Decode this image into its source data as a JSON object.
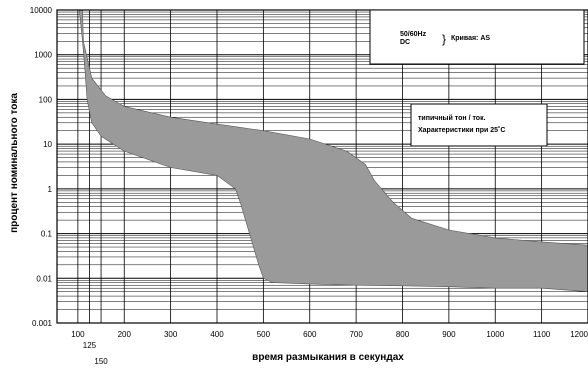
{
  "chart_data": {
    "type": "area",
    "xlabel": "время размыкания в секундах",
    "ylabel": "процент номинального тока",
    "xlim": [
      55,
      1200
    ],
    "ylim": [
      0.001,
      10000
    ],
    "y_scale": "log",
    "grid": true,
    "x_ticks": [
      {
        "v": 100,
        "label": "100",
        "row": 0
      },
      {
        "v": 125,
        "label": "125",
        "row": 1
      },
      {
        "v": 150,
        "label": "150",
        "row": 2
      },
      {
        "v": 200,
        "label": "200",
        "row": 0
      },
      {
        "v": 300,
        "label": "300",
        "row": 0
      },
      {
        "v": 400,
        "label": "400",
        "row": 0
      },
      {
        "v": 500,
        "label": "500",
        "row": 0
      },
      {
        "v": 600,
        "label": "600",
        "row": 0
      },
      {
        "v": 700,
        "label": "700",
        "row": 0
      },
      {
        "v": 800,
        "label": "800",
        "row": 0
      },
      {
        "v": 900,
        "label": "900",
        "row": 0
      },
      {
        "v": 1000,
        "label": "1000",
        "row": 0
      },
      {
        "v": 1100,
        "label": "1100",
        "row": 0
      },
      {
        "v": 1200,
        "label": "1200",
        "row": 0
      }
    ],
    "y_ticks": [
      {
        "v": 10000,
        "label": "10000"
      },
      {
        "v": 1000,
        "label": "1000"
      },
      {
        "v": 100,
        "label": "100"
      },
      {
        "v": 10,
        "label": "10"
      },
      {
        "v": 1,
        "label": "1"
      },
      {
        "v": 0.1,
        "label": "0.1"
      },
      {
        "v": 0.01,
        "label": "0.01"
      },
      {
        "v": 0.001,
        "label": "0.001"
      }
    ],
    "band": {
      "upper": [
        [
          110,
          10000
        ],
        [
          112,
          2000
        ],
        [
          130,
          300
        ],
        [
          160,
          120
        ],
        [
          200,
          70
        ],
        [
          300,
          40
        ],
        [
          400,
          28
        ],
        [
          500,
          20
        ],
        [
          600,
          13
        ],
        [
          680,
          7
        ],
        [
          720,
          3.5
        ],
        [
          740,
          1.5
        ],
        [
          780,
          0.5
        ],
        [
          820,
          0.22
        ],
        [
          900,
          0.12
        ],
        [
          1000,
          0.08
        ],
        [
          1100,
          0.065
        ],
        [
          1200,
          0.055
        ]
      ],
      "lower": [
        [
          1200,
          0.005
        ],
        [
          1100,
          0.006
        ],
        [
          1000,
          0.006
        ],
        [
          900,
          0.0065
        ],
        [
          800,
          0.0068
        ],
        [
          700,
          0.007
        ],
        [
          600,
          0.0075
        ],
        [
          520,
          0.008
        ],
        [
          500,
          0.01
        ],
        [
          490,
          0.02
        ],
        [
          470,
          0.1
        ],
        [
          450,
          0.5
        ],
        [
          440,
          1
        ],
        [
          400,
          2
        ],
        [
          300,
          3
        ],
        [
          200,
          7
        ],
        [
          150,
          15
        ],
        [
          130,
          30
        ],
        [
          120,
          100
        ],
        [
          115,
          500
        ],
        [
          110,
          2000
        ],
        [
          103,
          10000
        ]
      ]
    },
    "annotations": {
      "box1_line1": "50/60Hz",
      "box1_line2": "DC",
      "box1_brace": "}",
      "box1_curve": "Кривая:  AS",
      "box2_line1": "типичный тон / ток.",
      "box2_line2": "Характеристики при 25˚C"
    }
  }
}
